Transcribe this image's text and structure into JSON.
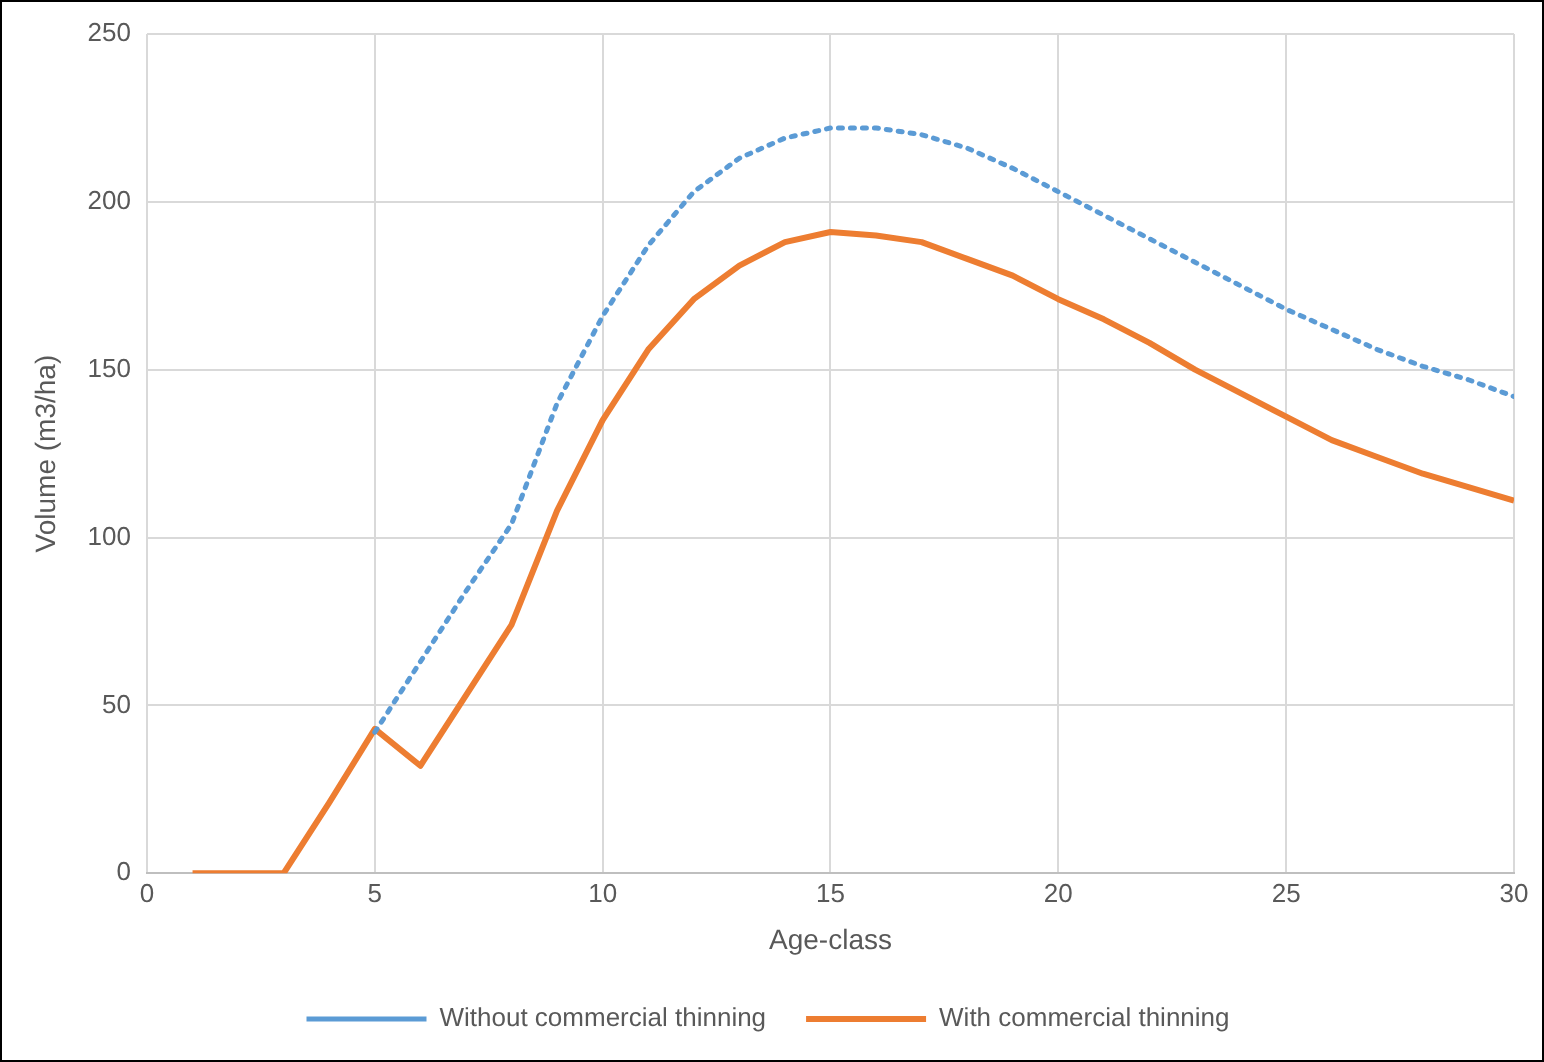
{
  "chart_data": {
    "type": "line",
    "xlabel": "Age-class",
    "ylabel": "Volume (m3/ha)",
    "x": [
      1,
      2,
      3,
      4,
      5,
      6,
      7,
      8,
      9,
      10,
      11,
      12,
      13,
      14,
      15,
      16,
      17,
      18,
      19,
      20,
      21,
      22,
      23,
      24,
      25,
      26,
      27,
      28,
      29,
      30
    ],
    "series": [
      {
        "name": "Without commercial thinning",
        "color": "#5b9bd5",
        "line_style": "dotted",
        "values": [
          null,
          null,
          null,
          null,
          42,
          63,
          84,
          104,
          140,
          166,
          187,
          203,
          213,
          219,
          222,
          222,
          220,
          216,
          210,
          203,
          196,
          189,
          182,
          175,
          168,
          162,
          156,
          151,
          147,
          142
        ]
      },
      {
        "name": "With commercial thinning",
        "color": "#ed7d31",
        "line_style": "solid",
        "values": [
          0,
          0,
          0,
          21,
          43,
          32,
          53,
          74,
          108,
          135,
          156,
          171,
          181,
          188,
          191,
          190,
          188,
          183,
          178,
          171,
          165,
          158,
          150,
          143,
          136,
          129,
          124,
          119,
          115,
          111
        ]
      }
    ],
    "xlim": [
      0,
      30
    ],
    "xticks": [
      0,
      5,
      10,
      15,
      20,
      25,
      30
    ],
    "ylim": [
      0,
      250
    ],
    "yticks": [
      0,
      50,
      100,
      150,
      200,
      250
    ],
    "grid": true,
    "legend": "bottom",
    "marker": "none"
  }
}
